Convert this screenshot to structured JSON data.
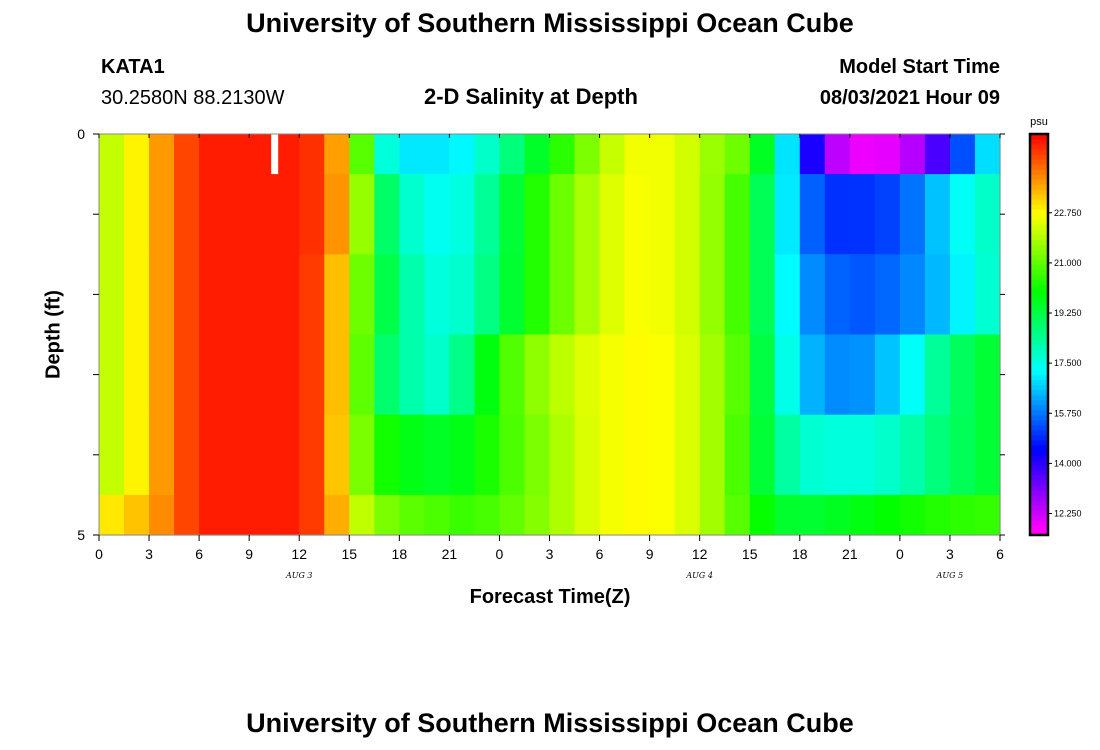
{
  "header": {
    "title": "University of Southern Mississippi Ocean Cube",
    "station": "KATA1",
    "location": "30.2580N  88.2130W",
    "plot_title": "2-D Salinity at Depth",
    "model_label": "Model Start Time",
    "model_time": "08/03/2021 Hour 09"
  },
  "footer": {
    "title": "University of Southern Mississippi Ocean Cube"
  },
  "chart_data": {
    "type": "heatmap",
    "title": "2-D Salinity at Depth",
    "xlabel": "Forecast Time(Z)",
    "ylabel": "Depth (ft)",
    "x_hours": [
      0,
      3,
      6,
      9,
      12,
      15,
      18,
      21,
      24,
      27,
      30,
      33,
      36,
      39,
      42,
      45,
      48,
      51,
      54
    ],
    "x_tick_labels": [
      "0",
      "3",
      "6",
      "9",
      "12",
      "15",
      "18",
      "21",
      "0",
      "3",
      "6",
      "9",
      "12",
      "15",
      "18",
      "21",
      "0",
      "3",
      "6"
    ],
    "date_labels": [
      {
        "label": "AUG 3",
        "hour": 12
      },
      {
        "label": "AUG 4",
        "hour": 36
      },
      {
        "label": "AUG 5",
        "hour": 51
      }
    ],
    "y_tick_labels": [
      "0",
      "5"
    ],
    "ylim": [
      0,
      5
    ],
    "depth_levels_ft": [
      0.25,
      1.0,
      2.0,
      3.0,
      4.0,
      4.75
    ],
    "values_psu": [
      [
        21.8,
        22.5,
        23.6,
        24.7,
        25.2,
        25.2,
        25.2,
        25.2,
        24.8,
        22.5,
        17.8,
        17.0,
        17.0,
        17.2,
        18.0,
        19.0,
        20.0,
        21.0,
        22.0,
        22.6,
        22.6,
        22.2,
        21.5,
        21.0,
        18.5,
        15.0,
        12.6,
        11.9,
        12.0,
        12.6,
        14.0,
        16.0,
        17.6
      ],
      [
        21.8,
        22.5,
        23.6,
        24.7,
        25.2,
        25.2,
        25.2,
        25.2,
        24.8,
        22.8,
        19.2,
        17.8,
        17.4,
        17.6,
        18.6,
        19.8,
        20.8,
        21.6,
        22.3,
        22.7,
        22.6,
        22.2,
        21.4,
        20.4,
        18.0,
        15.8,
        15.0,
        15.0,
        15.2,
        15.8,
        16.8,
        17.6,
        18.0
      ],
      [
        21.8,
        22.5,
        23.6,
        24.7,
        25.2,
        25.2,
        25.2,
        25.2,
        24.6,
        22.0,
        19.5,
        18.2,
        17.6,
        17.8,
        18.8,
        19.8,
        20.8,
        21.6,
        22.3,
        22.7,
        22.6,
        22.2,
        21.4,
        20.4,
        18.0,
        16.2,
        15.6,
        15.4,
        15.6,
        16.0,
        16.6,
        17.4,
        18.0
      ],
      [
        21.8,
        22.5,
        23.6,
        24.7,
        25.2,
        25.2,
        25.2,
        25.2,
        24.6,
        22.0,
        19.0,
        18.2,
        17.8,
        18.6,
        20.2,
        21.2,
        21.8,
        22.3,
        22.6,
        22.8,
        22.7,
        22.3,
        21.6,
        20.6,
        18.2,
        16.6,
        16.0,
        16.0,
        16.6,
        17.4,
        18.6,
        19.2,
        19.6
      ],
      [
        21.8,
        22.5,
        23.6,
        24.7,
        25.2,
        25.2,
        25.2,
        25.2,
        24.6,
        21.8,
        20.3,
        19.8,
        19.6,
        19.8,
        20.4,
        21.0,
        21.6,
        22.2,
        22.6,
        22.8,
        22.7,
        22.3,
        21.6,
        20.4,
        18.6,
        17.8,
        17.6,
        17.6,
        17.8,
        18.2,
        18.8,
        19.2,
        19.6
      ],
      [
        22.8,
        23.2,
        23.8,
        24.7,
        25.2,
        25.2,
        25.2,
        25.2,
        24.6,
        22.4,
        21.4,
        21.0,
        20.8,
        20.6,
        20.8,
        21.2,
        21.6,
        22.2,
        22.6,
        22.8,
        22.7,
        22.3,
        21.6,
        20.6,
        19.6,
        19.4,
        19.6,
        19.8,
        20.0,
        20.2,
        20.4,
        20.5,
        20.6
      ]
    ],
    "colorbar": {
      "unit": "psu",
      "range": [
        11.5,
        25.5
      ],
      "tick_labels": [
        "22.750",
        "21.000",
        "19.250",
        "17.500",
        "15.750",
        "14.000",
        "12.250"
      ]
    },
    "missing_marker": {
      "hour": 10.5,
      "depth_range_ft": [
        0,
        0.5
      ]
    }
  }
}
